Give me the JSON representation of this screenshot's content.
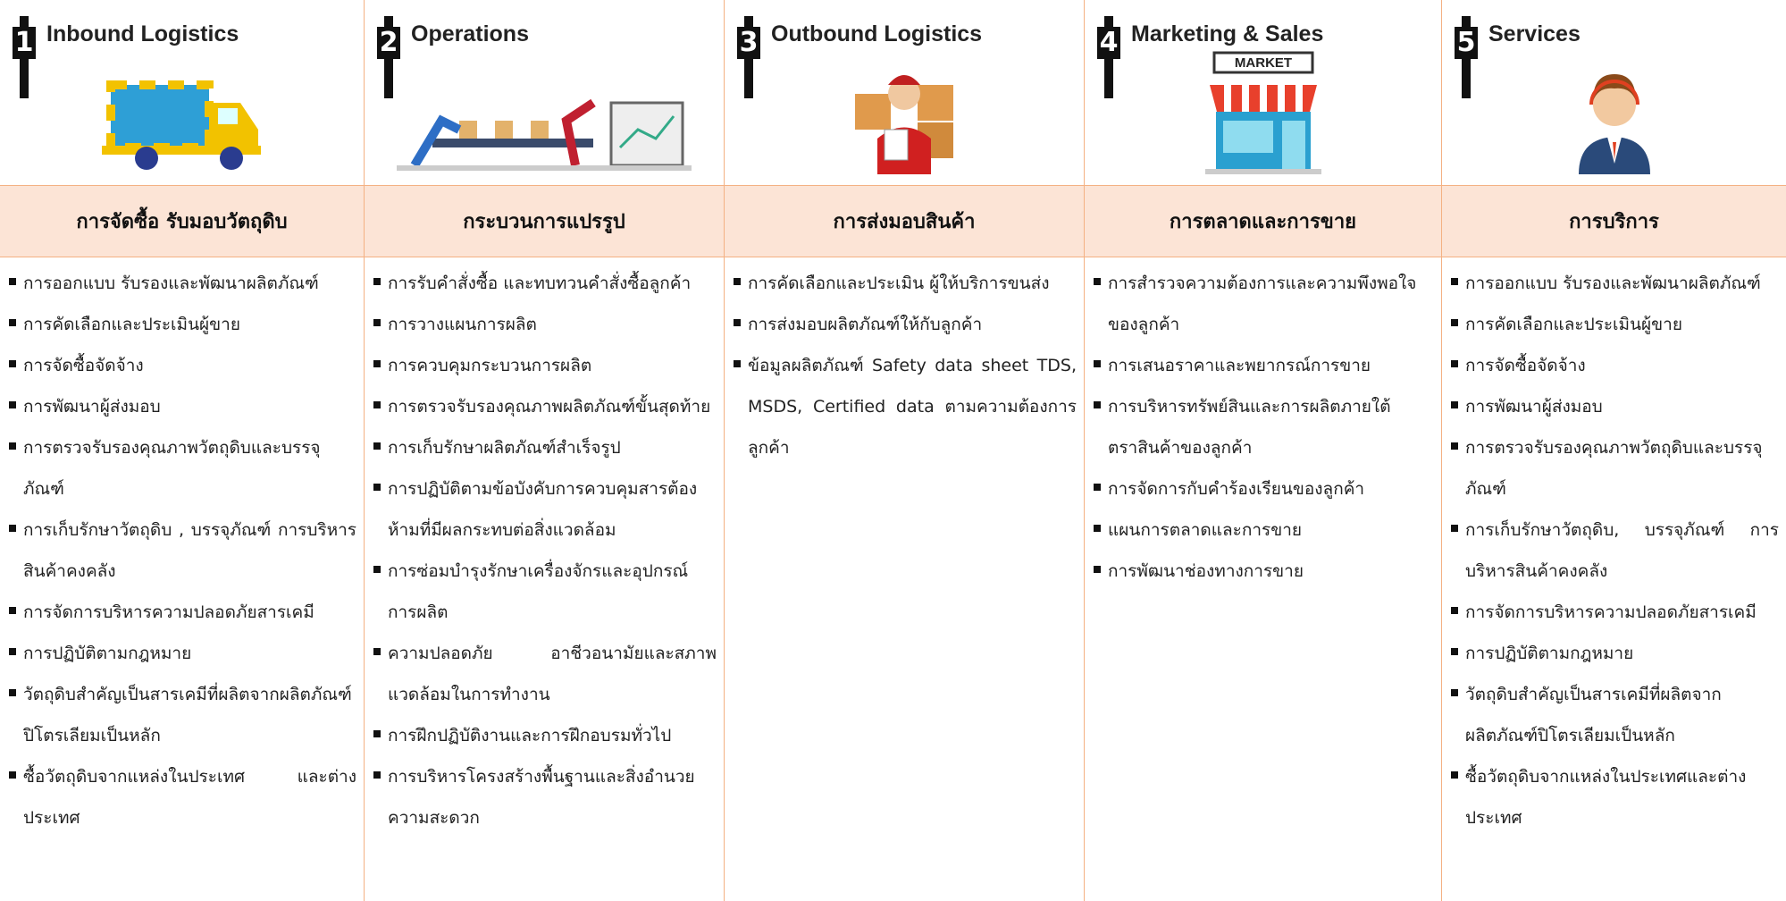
{
  "columns": [
    {
      "number": "1",
      "title": "Inbound Logistics",
      "thai_title": "การจัดซื้อ รับมอบวัตถุดิบ",
      "items": [
        "การออกแบบ รับรองและพัฒนาผลิตภัณฑ์",
        "การคัดเลือกและประเมินผู้ขาย",
        "การจัดซื้อจัดจ้าง",
        "การพัฒนาผู้ส่งมอบ",
        "การตรวจรับรองคุณภาพวัตถุดิบและบรรจุภัณฑ์",
        "การเก็บรักษาวัตถุดิบ , บรรจุภัณฑ์ การบริหารสินค้าคงคลัง",
        "การจัดการบริหารความปลอดภัยสารเคมี",
        "การปฏิบัติตามกฎหมาย",
        "วัตถุดิบสำคัญเป็นสารเคมีที่ผลิตจากผลิตภัณฑ์ปิโตรเลียมเป็นหลัก",
        "ซื้อวัตถุดิบจากแหล่งในประเทศ และต่างประเทศ"
      ]
    },
    {
      "number": "2",
      "title": "Operations",
      "thai_title": "กระบวนการแปรรูป",
      "items": [
        "การรับคำสั่งซื้อ และทบทวนคำสั่งซื้อลูกค้า",
        "การวางแผนการผลิต",
        "การควบคุมกระบวนการผลิต",
        "การตรวจรับรองคุณภาพผลิตภัณฑ์ขั้นสุดท้าย",
        "การเก็บรักษาผลิตภัณฑ์สำเร็จรูป",
        "การปฏิบัติตามข้อบังคับการควบคุมสารต้องห้ามที่มีผลกระทบต่อสิ่งแวดล้อม",
        "การซ่อมบำรุงรักษาเครื่องจักรและอุปกรณ์การผลิต",
        "ความปลอดภัย อาชีวอนามัยและสภาพแวดล้อมในการทำงาน",
        "การฝึกปฏิบัติงานและการฝึกอบรมทั่วไป",
        "การบริหารโครงสร้างพื้นฐานและสิ่งอำนวยความสะดวก"
      ]
    },
    {
      "number": "3",
      "title": "Outbound Logistics",
      "thai_title": "การส่งมอบสินค้า",
      "items": [
        "การคัดเลือกและประเมิน ผู้ให้บริการขนส่ง",
        "การส่งมอบผลิตภัณฑ์ให้กับลูกค้า",
        "ข้อมูลผลิตภัณฑ์ Safety data sheet TDS, MSDS, Certified data ตามความต้องการลูกค้า"
      ]
    },
    {
      "number": "4",
      "title": "Marketing & Sales",
      "thai_title": "การตลาดและการขาย",
      "sign": "MARKET",
      "items": [
        "การสำรวจความต้องการและความพึงพอใจของลูกค้า",
        "การเสนอราคาและพยากรณ์การขาย",
        "การบริหารทรัพย์สินและการผลิตภายใต้ตราสินค้าของลูกค้า",
        "การจัดการกับคำร้องเรียนของลูกค้า",
        "แผนการตลาดและการขาย",
        "การพัฒนาช่องทางการขาย"
      ]
    },
    {
      "number": "5",
      "title": "Services",
      "thai_title": "การบริการ",
      "items": [
        "การออกแบบ รับรองและพัฒนาผลิตภัณฑ์",
        "การคัดเลือกและประเมินผู้ขาย",
        "การจัดซื้อจัดจ้าง",
        "การพัฒนาผู้ส่งมอบ",
        "การตรวจรับรองคุณภาพวัตถุดิบและบรรจุภัณฑ์",
        "การเก็บรักษาวัตถุดิบ, บรรจุภัณฑ์ การบริหารสินค้าคงคลัง",
        "การจัดการบริหารความปลอดภัยสารเคมี",
        "การปฏิบัติตามกฎหมาย",
        "วัตถุดิบสำคัญเป็นสารเคมีที่ผลิตจากผลิตภัณฑ์ปิโตรเลียมเป็นหลัก",
        "ซื้อวัตถุดิบจากแหล่งในประเทศและต่างประเทศ"
      ]
    }
  ]
}
